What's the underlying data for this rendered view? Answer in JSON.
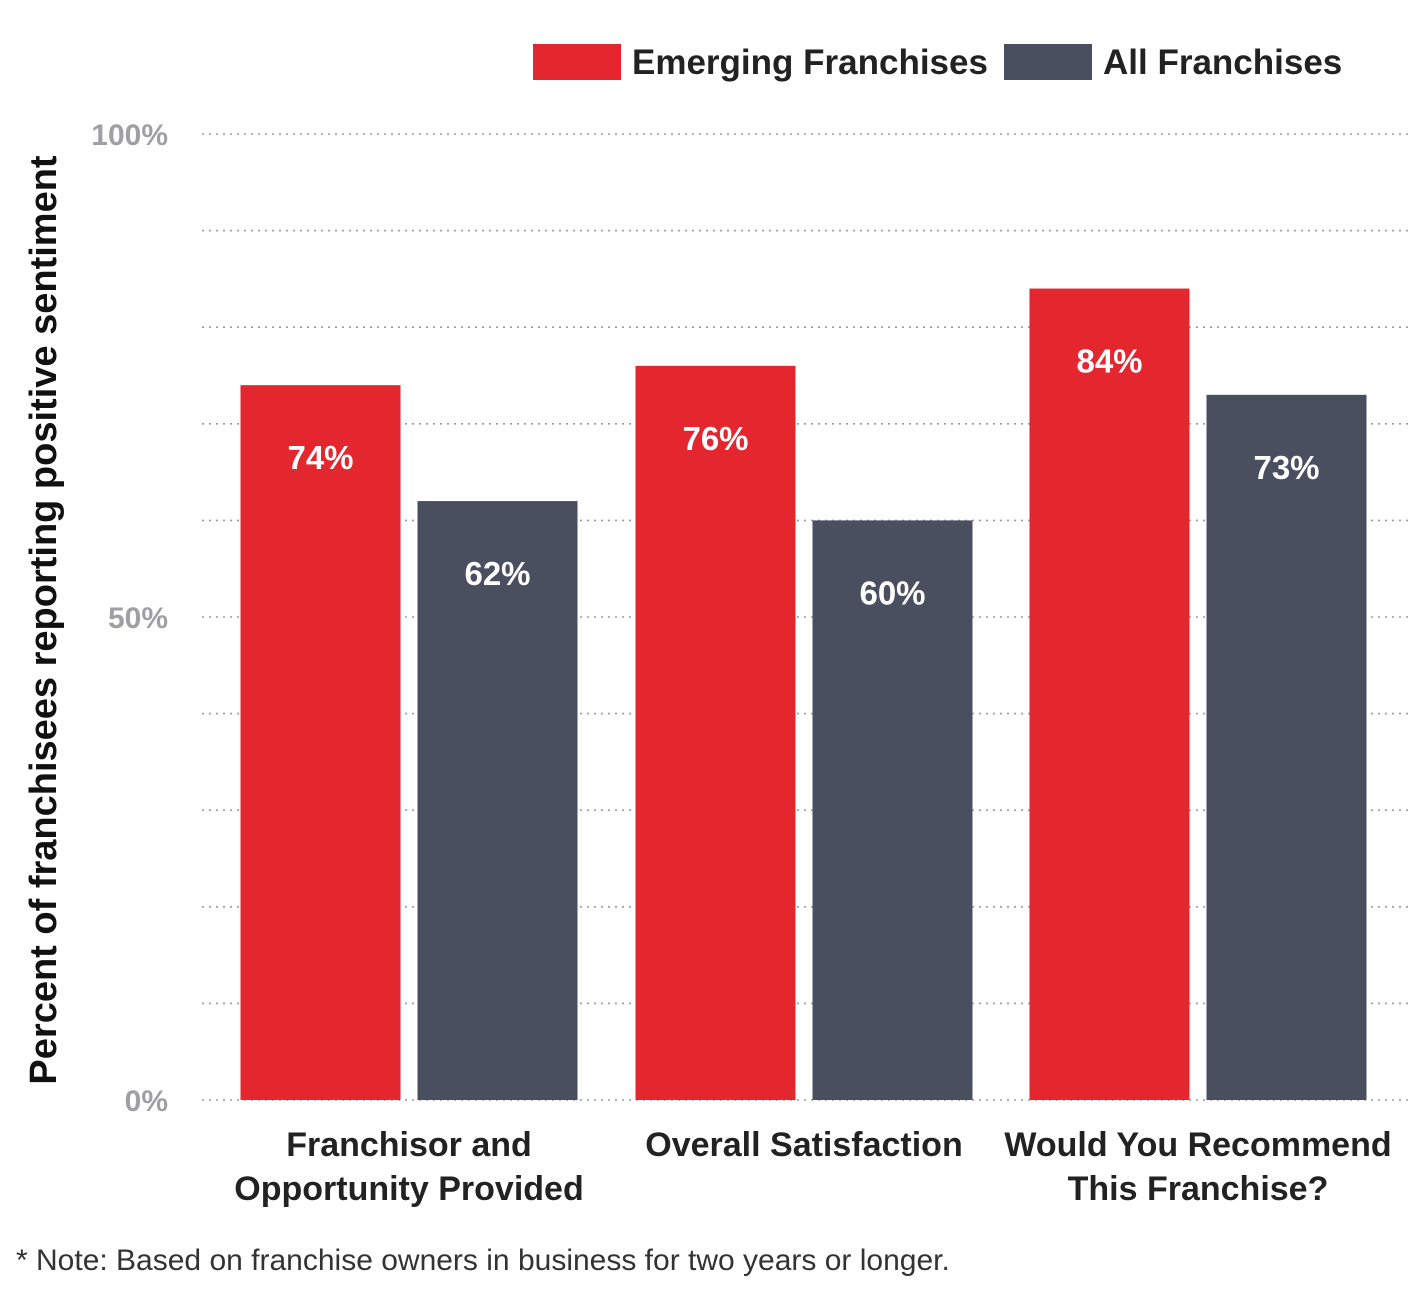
{
  "chart_data": {
    "type": "bar",
    "categories": [
      [
        "Franchisor and",
        "Opportunity Provided"
      ],
      [
        "Overall Satisfaction"
      ],
      [
        "Would You Recommend",
        "This Franchise?"
      ]
    ],
    "series": [
      {
        "name": "Emerging Franchises",
        "color": "#e4262f",
        "values": [
          74,
          76,
          84
        ],
        "labels": [
          "74%",
          "76%",
          "84%"
        ]
      },
      {
        "name": "All Franchises",
        "color": "#4a4f60",
        "values": [
          62,
          60,
          73
        ],
        "labels": [
          "62%",
          "60%",
          "73%"
        ]
      }
    ],
    "ylabel": "Percent of franchisees reporting positive sentiment",
    "ylim": [
      0,
      100
    ],
    "yticks": [
      {
        "value": 0,
        "label": "0%"
      },
      {
        "value": 50,
        "label": "50%"
      },
      {
        "value": 100,
        "label": "100%"
      }
    ],
    "grid_step": 10,
    "grid": true,
    "legend_position": "top-right"
  },
  "note": "* Note: Based on franchise owners in business for two years or longer."
}
